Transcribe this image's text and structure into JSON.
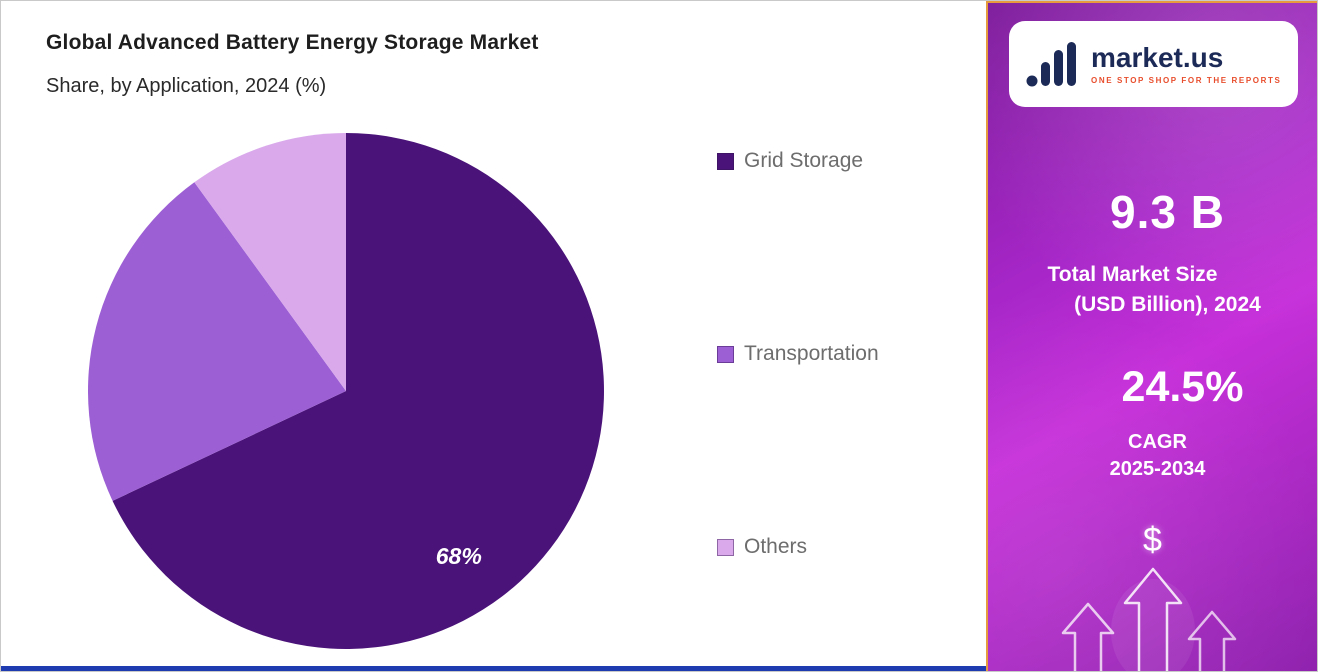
{
  "header": {
    "title": "Global Advanced Battery Energy Storage Market",
    "subtitle": "Share, by Application, 2024 (%)"
  },
  "chart_data": {
    "type": "pie",
    "title": "Global Advanced Battery Energy Storage Market Share, by Application, 2024 (%)",
    "labels": [
      "Grid Storage",
      "Transportation",
      "Others"
    ],
    "values": [
      68,
      22,
      10
    ],
    "colors": [
      "#4A1379",
      "#9C5FD4",
      "#D9A9EC"
    ],
    "data_labels": [
      "68%",
      "",
      ""
    ],
    "start_angle_deg": -90,
    "direction": "clockwise",
    "legend_position": "right"
  },
  "sidebar": {
    "logo": {
      "brand": "market.us",
      "tagline": "ONE STOP SHOP FOR THE REPORTS"
    },
    "market_size": {
      "value": "9.3 B",
      "label_line1": "Total Market Size",
      "label_line2": "(USD Billion), 2024"
    },
    "cagr": {
      "value": "24.5%",
      "label_line1": "CAGR",
      "label_line2": "2025-2034"
    },
    "dollar_symbol": "$"
  },
  "colors": {
    "panel_border": "#E79B3F",
    "bottom_bar": "#1E3BB0",
    "panel_gradient": [
      "#7E1D9C",
      "#C62FD9",
      "#8F22AE"
    ],
    "brand_navy": "#1C2A57",
    "tagline_orange": "#E84E2D",
    "legend_text": "#6D6D6D"
  }
}
